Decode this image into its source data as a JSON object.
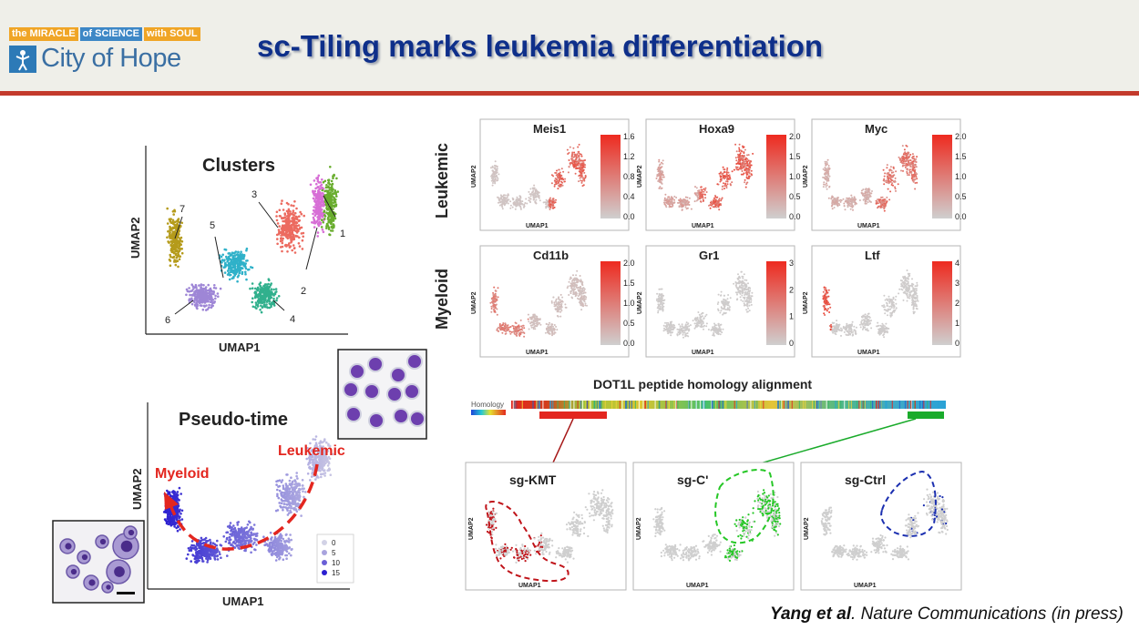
{
  "header": {
    "logo": {
      "tags": [
        "the MIRACLE",
        "of SCIENCE",
        "with SOUL"
      ],
      "brand": "City of Hope"
    },
    "title": "sc-Tiling marks leukemia differentiation"
  },
  "clusters_panel": {
    "title": "Clusters",
    "xlabel": "UMAP1",
    "ylabel": "UMAP2",
    "cluster_labels": [
      "1",
      "2",
      "3",
      "4",
      "5",
      "6",
      "7"
    ]
  },
  "pseudotime_panel": {
    "title": "Pseudo-time",
    "xlabel": "UMAP1",
    "ylabel": "UMAP2",
    "myeloid_label": "Myeloid",
    "leukemic_label": "Leukemic",
    "legend": [
      "0",
      "5",
      "10",
      "15"
    ]
  },
  "feature_panels": {
    "row_labels": [
      "Leukemic",
      "Myeloid"
    ],
    "axis_x": "UMAP1",
    "axis_y": "UMAP2",
    "plots": [
      {
        "gene": "Meis1",
        "ticks": [
          "1.6",
          "1.2",
          "0.8",
          "0.4",
          "0.0"
        ]
      },
      {
        "gene": "Hoxa9",
        "ticks": [
          "2.0",
          "1.5",
          "1.0",
          "0.5",
          "0.0"
        ]
      },
      {
        "gene": "Myc",
        "ticks": [
          "2.0",
          "1.5",
          "1.0",
          "0.5",
          "0.0"
        ]
      },
      {
        "gene": "Cd11b",
        "ticks": [
          "2.0",
          "1.5",
          "1.0",
          "0.5",
          "0.0"
        ]
      },
      {
        "gene": "Gr1",
        "ticks": [
          "3",
          "2",
          "1",
          "0"
        ]
      },
      {
        "gene": "Ltf",
        "ticks": [
          "4",
          "3",
          "2",
          "1",
          "0"
        ]
      }
    ]
  },
  "alignment": {
    "title": "DOT1L peptide homology alignment",
    "row_label": "Homology"
  },
  "sg_panels": {
    "axis_x": "UMAP1",
    "axis_y": "UMAP2",
    "plots": [
      {
        "label": "sg-KMT",
        "color": "#c0141a"
      },
      {
        "label": "sg-C'",
        "color": "#26c726"
      },
      {
        "label": "sg-Ctrl",
        "color": "#1b2fb0"
      }
    ]
  },
  "citation": {
    "authors": "Yang et al",
    "rest": ". Nature Communications (in press)"
  },
  "colors": {
    "title": "#0e2f8a",
    "accent_red": "#c33a2c",
    "myeloid": "#2b1fd0",
    "leukemic": "#e3261f"
  }
}
